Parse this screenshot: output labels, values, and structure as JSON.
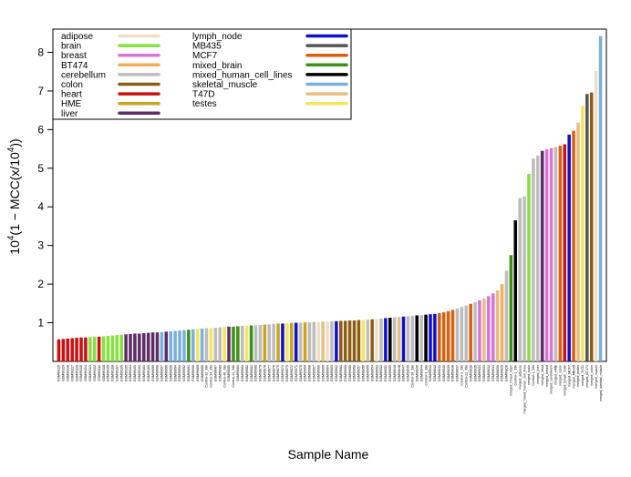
{
  "chart_data": {
    "type": "bar",
    "xlabel": "Sample Name",
    "ylabel_parts": {
      "base": "10",
      "exp": "4",
      "mid": "(1 − MCC(x/10",
      "exp2": "4",
      "end": "))"
    },
    "ylim": [
      0,
      8.6
    ],
    "yticks": [
      1,
      2,
      3,
      4,
      5,
      6,
      7,
      8
    ],
    "grid": false,
    "legend_position": "top-left",
    "legend": [
      {
        "label": "adipose",
        "color": "#eedfc8"
      },
      {
        "label": "brain",
        "color": "#86e03e"
      },
      {
        "label": "breast",
        "color": "#d874d8"
      },
      {
        "label": "BT474",
        "color": "#f4ae5e"
      },
      {
        "label": "cerebellum",
        "color": "#bdbdbd"
      },
      {
        "label": "colon",
        "color": "#8b5e12"
      },
      {
        "label": "heart",
        "color": "#cc1010"
      },
      {
        "label": "HME",
        "color": "#c9a41c"
      },
      {
        "label": "liver",
        "color": "#5e2d66"
      },
      {
        "label": "lymph_node",
        "color": "#1010cc"
      },
      {
        "label": "MB435",
        "color": "#555555"
      },
      {
        "label": "MCF7",
        "color": "#d8600e"
      },
      {
        "label": "mixed_brain",
        "color": "#3e9118"
      },
      {
        "label": "mixed_human_cell_lines",
        "color": "#000000"
      },
      {
        "label": "skeletal_muscle",
        "color": "#7ab0dc"
      },
      {
        "label": "T47D",
        "color": "#e8be80"
      },
      {
        "label": "testes",
        "color": "#f5e55e"
      }
    ],
    "bars": [
      {
        "name": "GSM99120",
        "group": "heart",
        "value": 0.57
      },
      {
        "name": "GSM99119",
        "group": "heart",
        "value": 0.58
      },
      {
        "name": "GSM99118",
        "group": "heart",
        "value": 0.59
      },
      {
        "name": "GSM99117",
        "group": "heart",
        "value": 0.6
      },
      {
        "name": "GSM99116",
        "group": "heart",
        "value": 0.61
      },
      {
        "name": "GSM99115",
        "group": "heart",
        "value": 0.62
      },
      {
        "name": "GSM99114",
        "group": "heart",
        "value": 0.62
      },
      {
        "name": "GSM99113",
        "group": "brain",
        "value": 0.63
      },
      {
        "name": "GSM99112",
        "group": "brain",
        "value": 0.64
      },
      {
        "name": "GSM99111",
        "group": "heart",
        "value": 0.64
      },
      {
        "name": "GSM99110",
        "group": "brain",
        "value": 0.65
      },
      {
        "name": "GSM99109",
        "group": "brain",
        "value": 0.66
      },
      {
        "name": "GSM99108",
        "group": "brain",
        "value": 0.67
      },
      {
        "name": "GSM99107",
        "group": "brain",
        "value": 0.68
      },
      {
        "name": "GSM99106",
        "group": "brain",
        "value": 0.69
      },
      {
        "name": "GSM99105",
        "group": "liver",
        "value": 0.7
      },
      {
        "name": "GSM99104",
        "group": "liver",
        "value": 0.71
      },
      {
        "name": "GSM99103",
        "group": "liver",
        "value": 0.72
      },
      {
        "name": "GSM99102",
        "group": "liver",
        "value": 0.72
      },
      {
        "name": "GSM99101",
        "group": "liver",
        "value": 0.73
      },
      {
        "name": "GSM99100",
        "group": "liver",
        "value": 0.74
      },
      {
        "name": "GSM99099",
        "group": "liver",
        "value": 0.75
      },
      {
        "name": "GSM99098",
        "group": "liver",
        "value": 0.75
      },
      {
        "name": "GSM99097",
        "group": "skeletal_muscle",
        "value": 0.76
      },
      {
        "name": "GSM99096",
        "group": "liver",
        "value": 0.77
      },
      {
        "name": "GSM99095",
        "group": "skeletal_muscle",
        "value": 0.78
      },
      {
        "name": "GSM99094",
        "group": "skeletal_muscle",
        "value": 0.79
      },
      {
        "name": "GSM99093",
        "group": "skeletal_muscle",
        "value": 0.8
      },
      {
        "name": "GSM99092",
        "group": "skeletal_muscle",
        "value": 0.81
      },
      {
        "name": "GSM99091",
        "group": "mixed_brain",
        "value": 0.82
      },
      {
        "name": "GSM99090",
        "group": "skeletal_muscle",
        "value": 0.83
      },
      {
        "name": "GSM99089",
        "group": "testes",
        "value": 0.84
      },
      {
        "name": "GSM99088",
        "group": "skeletal_muscle",
        "value": 0.85
      },
      {
        "name": "Control-32_39k",
        "group": "cerebellum",
        "value": 0.86
      },
      {
        "name": "Control-34_39k",
        "group": "testes",
        "value": 0.86
      },
      {
        "name": "GSM99087",
        "group": "cerebellum",
        "value": 0.87
      },
      {
        "name": "GSM99086",
        "group": "cerebellum",
        "value": 0.88
      },
      {
        "name": "Control-40_39k",
        "group": "testes",
        "value": 0.89
      },
      {
        "name": "GSM99085",
        "group": "liver",
        "value": 0.9
      },
      {
        "name": "Control-44_39k",
        "group": "mixed_brain",
        "value": 0.9
      },
      {
        "name": "GSM99084",
        "group": "mixed_brain",
        "value": 0.91
      },
      {
        "name": "GSM99083",
        "group": "cerebellum",
        "value": 0.92
      },
      {
        "name": "GSM99082",
        "group": "testes",
        "value": 0.92
      },
      {
        "name": "GSM99081",
        "group": "mixed_brain",
        "value": 0.93
      },
      {
        "name": "GSM99080",
        "group": "cerebellum",
        "value": 0.93
      },
      {
        "name": "GSM99079",
        "group": "cerebellum",
        "value": 0.94
      },
      {
        "name": "GSM99078",
        "group": "HME",
        "value": 0.95
      },
      {
        "name": "GSM99077",
        "group": "cerebellum",
        "value": 0.96
      },
      {
        "name": "GSM99076",
        "group": "cerebellum",
        "value": 0.97
      },
      {
        "name": "GSM99075",
        "group": "HME",
        "value": 0.98
      },
      {
        "name": "GSM99074",
        "group": "lymph_node",
        "value": 0.98
      },
      {
        "name": "GSM99073",
        "group": "testes",
        "value": 0.99
      },
      {
        "name": "GSM99072",
        "group": "HME",
        "value": 1.0
      },
      {
        "name": "GSM99071",
        "group": "lymph_node",
        "value": 1.0
      },
      {
        "name": "GSM99070",
        "group": "cerebellum",
        "value": 1.0
      },
      {
        "name": "GSM99069",
        "group": "HME",
        "value": 1.01
      },
      {
        "name": "GSM99068",
        "group": "cerebellum",
        "value": 1.01
      },
      {
        "name": "GSM99067",
        "group": "cerebellum",
        "value": 1.02
      },
      {
        "name": "GSM99066",
        "group": "adipose",
        "value": 1.02
      },
      {
        "name": "GSM99065",
        "group": "T47D",
        "value": 1.03
      },
      {
        "name": "GSM99064",
        "group": "adipose",
        "value": 1.03
      },
      {
        "name": "GSM99063",
        "group": "cerebellum",
        "value": 1.04
      },
      {
        "name": "GSM99062",
        "group": "lymph_node",
        "value": 1.04
      },
      {
        "name": "GSM99061",
        "group": "colon",
        "value": 1.05
      },
      {
        "name": "GSM99060",
        "group": "colon",
        "value": 1.05
      },
      {
        "name": "GSM99059",
        "group": "colon",
        "value": 1.06
      },
      {
        "name": "GSM99058",
        "group": "colon",
        "value": 1.06
      },
      {
        "name": "GSM99057",
        "group": "colon",
        "value": 1.07
      },
      {
        "name": "GSM99056",
        "group": "testes",
        "value": 1.07
      },
      {
        "name": "GSM99055",
        "group": "cerebellum",
        "value": 1.08
      },
      {
        "name": "GSM99054",
        "group": "colon",
        "value": 1.09
      },
      {
        "name": "GSM99053",
        "group": "adipose",
        "value": 1.1
      },
      {
        "name": "GSM99052",
        "group": "cerebellum",
        "value": 1.11
      },
      {
        "name": "GSM99051",
        "group": "lymph_node",
        "value": 1.12
      },
      {
        "name": "GSM99050",
        "group": "mixed_human_cell_lines",
        "value": 1.13
      },
      {
        "name": "GSM99049",
        "group": "cerebellum",
        "value": 1.14
      },
      {
        "name": "GSM99048",
        "group": "T47D",
        "value": 1.15
      },
      {
        "name": "GSM99047",
        "group": "lymph_node",
        "value": 1.16
      },
      {
        "name": "GSM99046",
        "group": "cerebellum",
        "value": 1.17
      },
      {
        "name": "Control-39_39k",
        "group": "cerebellum",
        "value": 1.18
      },
      {
        "name": "GSM99045",
        "group": "mixed_human_cell_lines",
        "value": 1.19
      },
      {
        "name": "GSM99044",
        "group": "cerebellum",
        "value": 1.2
      },
      {
        "name": "Control-1_39k",
        "group": "mixed_human_cell_lines",
        "value": 1.21
      },
      {
        "name": "GSM99043",
        "group": "lymph_node",
        "value": 1.22
      },
      {
        "name": "GSM99042",
        "group": "lymph_node",
        "value": 1.23
      },
      {
        "name": "GSM99041",
        "group": "MCF7",
        "value": 1.25
      },
      {
        "name": "GSM99040",
        "group": "MCF7",
        "value": 1.27
      },
      {
        "name": "GSM99039",
        "group": "MCF7",
        "value": 1.3
      },
      {
        "name": "GSM99038",
        "group": "MCF7",
        "value": 1.33
      },
      {
        "name": "GSM99037",
        "group": "cerebellum",
        "value": 1.37
      },
      {
        "name": "Control-2_39k",
        "group": "cerebellum",
        "value": 1.41
      },
      {
        "name": "Control-21_39k",
        "group": "cerebellum",
        "value": 1.45
      },
      {
        "name": "GSM99036",
        "group": "MCF7",
        "value": 1.49
      },
      {
        "name": "GSM99035",
        "group": "cerebellum",
        "value": 1.53
      },
      {
        "name": "GSM99034",
        "group": "breast",
        "value": 1.58
      },
      {
        "name": "GSM99033",
        "group": "T47D",
        "value": 1.63
      },
      {
        "name": "GSM99032",
        "group": "breast",
        "value": 1.69
      },
      {
        "name": "GSM99031",
        "group": "breast",
        "value": 1.76
      },
      {
        "name": "GSM99030",
        "group": "T47D",
        "value": 1.84
      },
      {
        "name": "GSM99029",
        "group": "BT474",
        "value": 2.0
      },
      {
        "name": "GSM99028",
        "group": "cerebellum",
        "value": 2.35
      },
      {
        "name": "merged_mixed_brain",
        "group": "mixed_brain",
        "value": 2.75
      },
      {
        "name": "Control-1_39k",
        "group": "mixed_human_cell_lines",
        "value": 3.65
      },
      {
        "name": "merged_adipose",
        "group": "cerebellum",
        "value": 4.23
      },
      {
        "name": "merged_mixed_human_cell_lines",
        "group": "cerebellum",
        "value": 4.27
      },
      {
        "name": "merged_brain",
        "group": "brain",
        "value": 4.85
      },
      {
        "name": "Control-1_39k",
        "group": "cerebellum",
        "value": 5.25
      },
      {
        "name": "merged_liver",
        "group": "cerebellum",
        "value": 5.33
      },
      {
        "name": "merged_heart",
        "group": "liver",
        "value": 5.45
      },
      {
        "name": "merged_breast",
        "group": "breast",
        "value": 5.49
      },
      {
        "name": "merged_cerebellum",
        "group": "breast",
        "value": 5.52
      },
      {
        "name": "merged_HME",
        "group": "cerebellum",
        "value": 5.55
      },
      {
        "name": "merged_colon",
        "group": "MCF7",
        "value": 5.58
      },
      {
        "name": "merged_lymph_node",
        "group": "heart",
        "value": 5.62
      },
      {
        "name": "merged_MCF7",
        "group": "lymph_node",
        "value": 5.87
      },
      {
        "name": "merged_MB435",
        "group": "MCF7",
        "value": 5.97
      },
      {
        "name": "merged_testes",
        "group": "T47D",
        "value": 6.18
      },
      {
        "name": "merged_T47D",
        "group": "testes",
        "value": 6.62
      },
      {
        "name": "merged_BT474",
        "group": "MB435",
        "value": 6.92
      },
      {
        "name": "merged_colon",
        "group": "colon",
        "value": 6.96
      },
      {
        "name": "merged_muscle",
        "group": "adipose",
        "value": 7.52
      },
      {
        "name": "merged_skeletal_muscle",
        "group": "skeletal_muscle",
        "value": 8.42
      }
    ]
  }
}
